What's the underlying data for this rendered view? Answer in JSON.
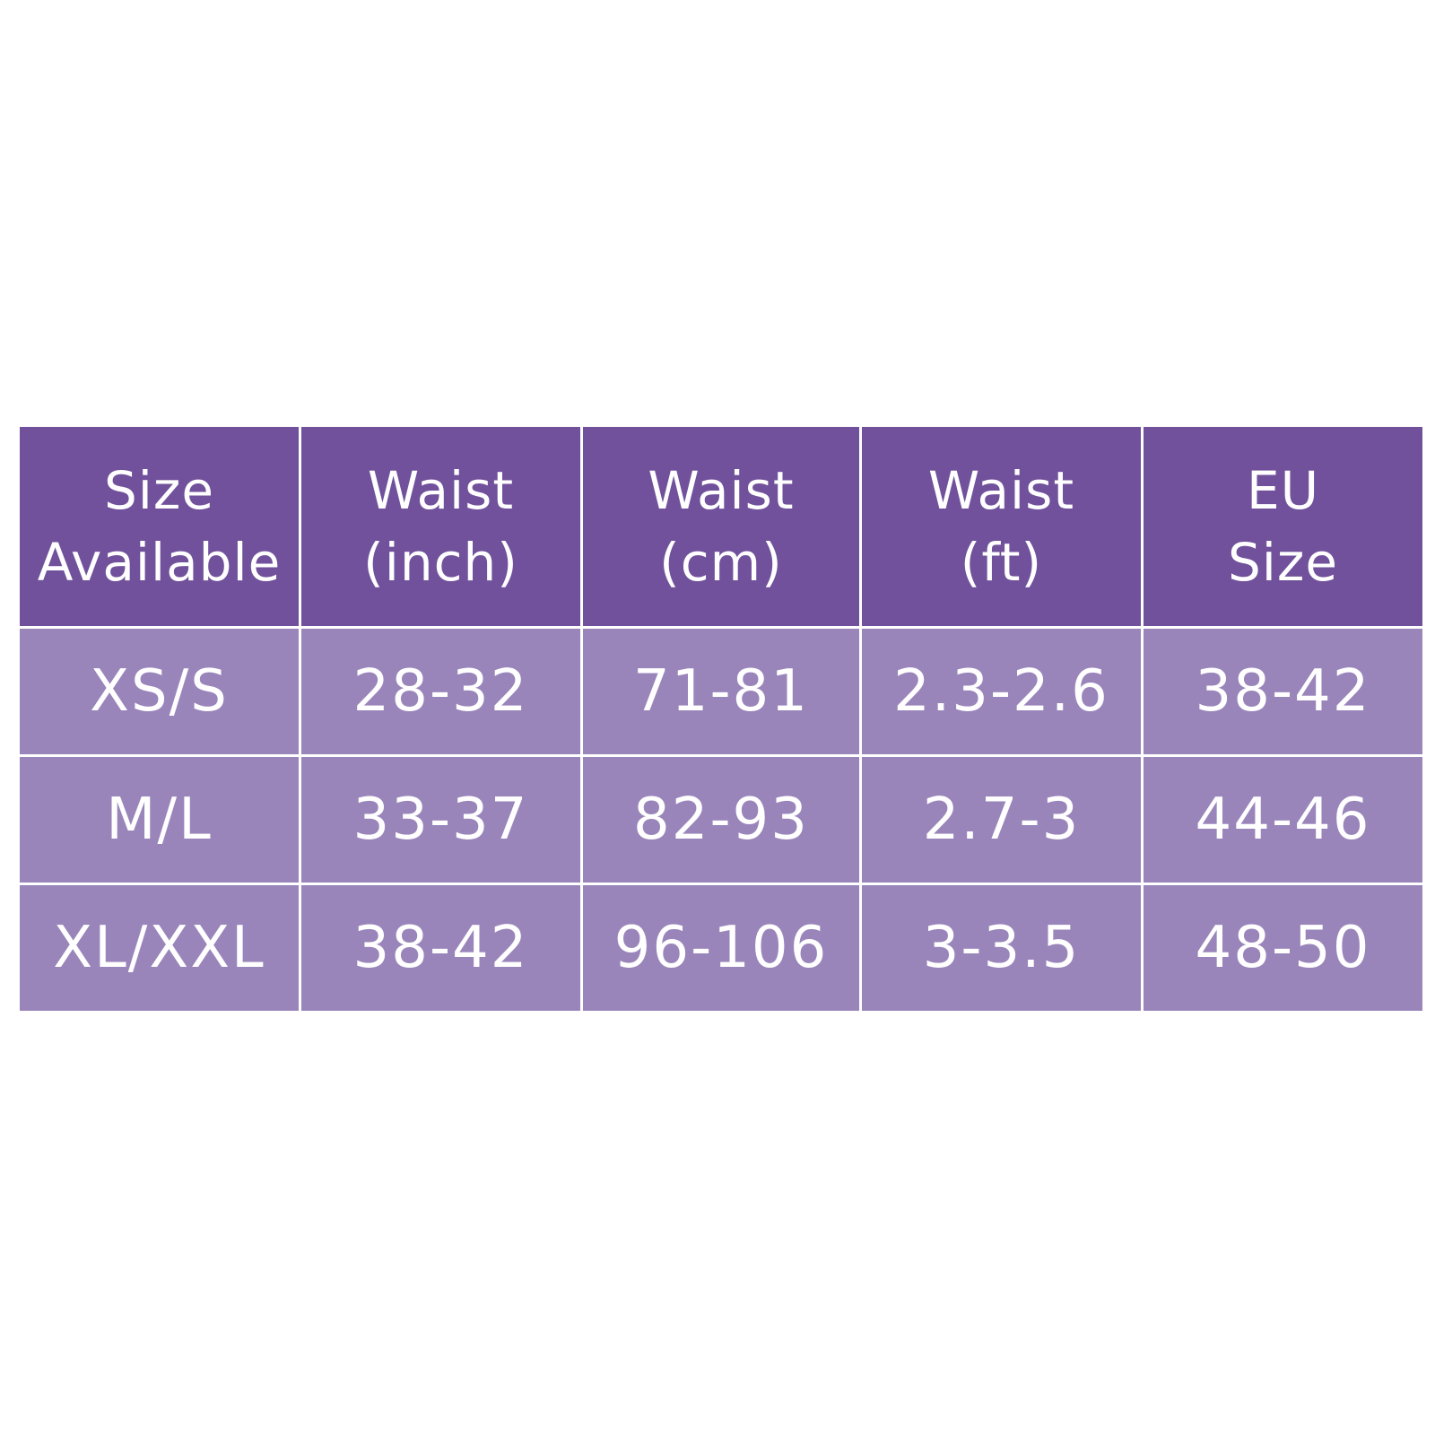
{
  "table": {
    "headers": [
      [
        "Size",
        "Available"
      ],
      [
        "Waist",
        "(inch)"
      ],
      [
        "Waist",
        "(cm)"
      ],
      [
        "Waist",
        "(ft)"
      ],
      [
        "EU",
        "Size"
      ]
    ],
    "rows": [
      [
        "XS/S",
        "28-32",
        "71-81",
        "2.3-2.6",
        "38-42"
      ],
      [
        "M/L",
        "33-37",
        "82-93",
        "2.7-3",
        "44-46"
      ],
      [
        "XL/XXL",
        "38-42",
        "96-106",
        "3-3.5",
        "48-50"
      ]
    ]
  },
  "colors": {
    "header_bg": "#71519b",
    "row_bg": "#9a85bb",
    "text": "#ffffff",
    "grid": "#ffffff"
  }
}
